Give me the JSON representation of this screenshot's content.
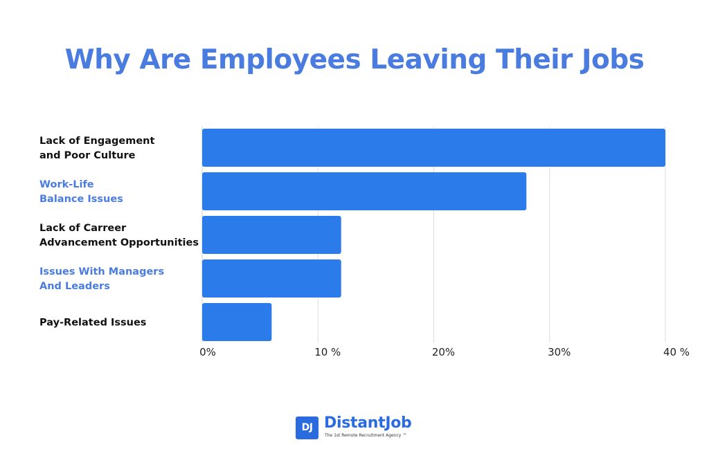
{
  "chart_data": {
    "type": "bar",
    "orientation": "horizontal",
    "title": "Why Are Employees Leaving Their Jobs",
    "categories": [
      [
        "Lack of Engagement",
        "and Poor Culture"
      ],
      [
        "Work-Life",
        "Balance Issues"
      ],
      [
        "Lack of Carreer",
        "Advancement Opportunities"
      ],
      [
        "Issues With Managers",
        "And Leaders"
      ],
      [
        "Pay-Related Issues"
      ]
    ],
    "values": [
      40,
      28,
      12,
      12,
      6
    ],
    "xlim": [
      0,
      40
    ],
    "x_ticks": [
      "0%",
      "10 %",
      "20%",
      "30%",
      "40 %"
    ],
    "grid": true,
    "colors": {
      "bar": "#2B7BEA",
      "title": "#4A7CE0",
      "label_dark": "#111111",
      "label_blue": "#4A7CE0",
      "grid": "#DDDDDD"
    },
    "label_color_pattern": [
      "dark",
      "blue",
      "dark",
      "blue",
      "dark"
    ]
  },
  "logo": {
    "mark": "DJ",
    "name": "DistantJob",
    "tagline": "The 1st Remote Recruitment Agency ™"
  }
}
